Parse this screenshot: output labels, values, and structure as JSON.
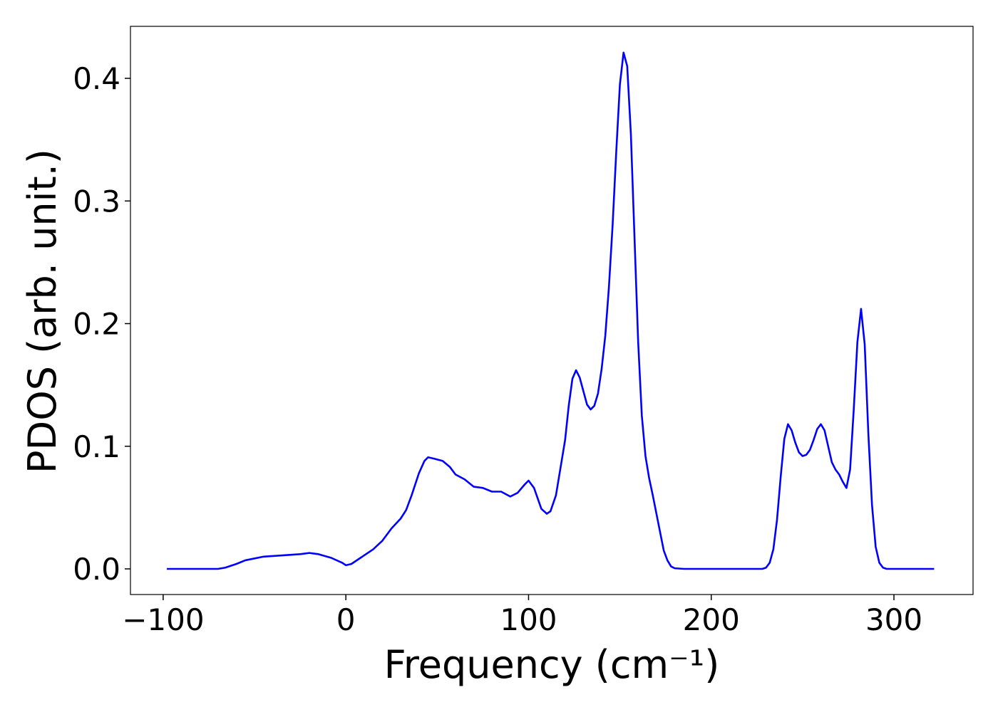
{
  "chart_data": {
    "type": "line",
    "xlabel": "Frequency (cm⁻¹)",
    "ylabel": "PDOS (arb. unit.)",
    "x": [
      -98,
      -70,
      -66,
      -60,
      -55,
      -45,
      -35,
      -25,
      -20,
      -15,
      -8,
      -2,
      0,
      3,
      8,
      15,
      20,
      25,
      30,
      33,
      36,
      40,
      43,
      45,
      48,
      53,
      57,
      60,
      65,
      70,
      75,
      80,
      85,
      90,
      94,
      98,
      100,
      103,
      107,
      110,
      112,
      115,
      117,
      120,
      122,
      124,
      126,
      128,
      130,
      132,
      134,
      136,
      138,
      140,
      142,
      144,
      146,
      148,
      150,
      152,
      154,
      156,
      158,
      160,
      162,
      164,
      166,
      168,
      170,
      172,
      174,
      176,
      178,
      180,
      185,
      228,
      230,
      232,
      234,
      236,
      238,
      240,
      242,
      244,
      246,
      248,
      250,
      252,
      254,
      256,
      258,
      260,
      262,
      264,
      266,
      268,
      270,
      272,
      274,
      276,
      278,
      280,
      282,
      284,
      286,
      288,
      290,
      292,
      294,
      296,
      322
    ],
    "series": [
      {
        "name": "PDOS",
        "color": "#0000ff",
        "values": [
          0,
          0,
          0.001,
          0.004,
          0.007,
          0.01,
          0.011,
          0.012,
          0.013,
          0.012,
          0.009,
          0.005,
          0.003,
          0.004,
          0.009,
          0.016,
          0.023,
          0.033,
          0.041,
          0.048,
          0.06,
          0.078,
          0.088,
          0.091,
          0.09,
          0.088,
          0.083,
          0.077,
          0.073,
          0.067,
          0.066,
          0.063,
          0.063,
          0.059,
          0.062,
          0.069,
          0.072,
          0.066,
          0.049,
          0.045,
          0.047,
          0.06,
          0.078,
          0.105,
          0.133,
          0.155,
          0.162,
          0.156,
          0.145,
          0.134,
          0.13,
          0.133,
          0.143,
          0.163,
          0.19,
          0.23,
          0.28,
          0.34,
          0.395,
          0.421,
          0.41,
          0.355,
          0.27,
          0.185,
          0.125,
          0.092,
          0.074,
          0.06,
          0.045,
          0.03,
          0.015,
          0.007,
          0.002,
          0.0005,
          0,
          0,
          0.001,
          0.005,
          0.016,
          0.04,
          0.075,
          0.106,
          0.118,
          0.113,
          0.103,
          0.095,
          0.092,
          0.093,
          0.097,
          0.105,
          0.114,
          0.118,
          0.113,
          0.1,
          0.087,
          0.081,
          0.077,
          0.071,
          0.066,
          0.081,
          0.13,
          0.185,
          0.212,
          0.183,
          0.11,
          0.052,
          0.018,
          0.005,
          0.001,
          0,
          0
        ]
      }
    ],
    "xlim": [
      -117.9,
      343.3
    ],
    "xticks": [
      {
        "value": -100,
        "label": "−100"
      },
      0,
      100,
      200,
      300
    ],
    "ylim": [
      -0.0209,
      0.4424
    ],
    "yticks": [
      {
        "value": 0,
        "label": "0.0"
      },
      0.1,
      0.2,
      0.3,
      0.4
    ],
    "grid": false
  }
}
